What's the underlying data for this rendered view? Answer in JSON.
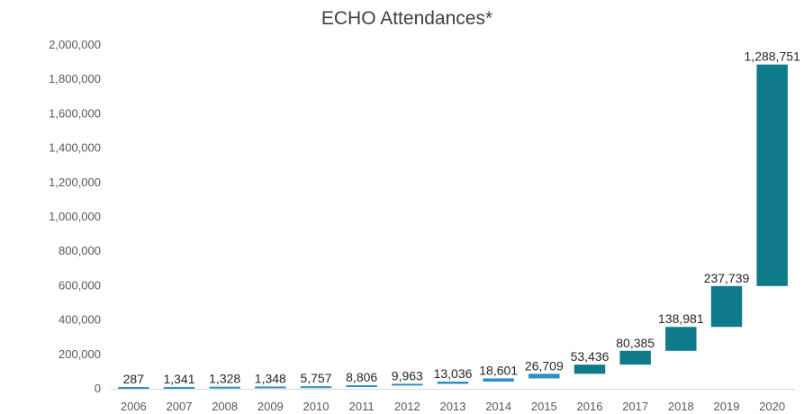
{
  "chart_data": {
    "type": "bar",
    "subtype": "waterfall",
    "title": "ECHO Attendances*",
    "xlabel": "",
    "ylabel": "",
    "ylim": [
      0,
      2000000
    ],
    "y_ticks": [
      "0",
      "200,000",
      "400,000",
      "600,000",
      "800,000",
      "1,000,000",
      "1,200,000",
      "1,400,000",
      "1,600,000",
      "1,800,000",
      "2,000,000"
    ],
    "y_tick_values": [
      0,
      200000,
      400000,
      600000,
      800000,
      1000000,
      1200000,
      1400000,
      1600000,
      1800000,
      2000000
    ],
    "grid": false,
    "legend": "none",
    "categories": [
      "2006",
      "2007",
      "2008",
      "2009",
      "2010",
      "2011",
      "2012",
      "2013",
      "2014",
      "2015",
      "2016",
      "2017",
      "2018",
      "2019",
      "2020"
    ],
    "values": [
      287,
      1341,
      1328,
      1348,
      5757,
      8806,
      9963,
      13036,
      18601,
      26709,
      53436,
      80385,
      138981,
      237739,
      1288751
    ],
    "value_labels": [
      "287",
      "1,341",
      "1,328",
      "1,348",
      "5,757",
      "8,806",
      "9,963",
      "13,036",
      "18,601",
      "26,709",
      "53,436",
      "80,385",
      "138,981",
      "237,739",
      "1,288,751"
    ],
    "colors": {
      "bar": "#0f7b8a",
      "bar_small": "#2f8fc4",
      "axis": "#d9d9d9"
    }
  }
}
